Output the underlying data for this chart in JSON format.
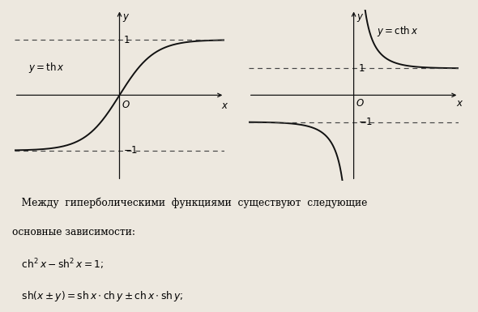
{
  "background_color": "#ede8df",
  "left_plot": {
    "xlim": [
      -3.0,
      3.0
    ],
    "ylim": [
      -1.55,
      1.55
    ],
    "asymptotes": [
      1.0,
      -1.0
    ]
  },
  "right_plot": {
    "xlim": [
      -3.0,
      3.0
    ],
    "ylim": [
      -3.2,
      3.2
    ],
    "asymptotes": [
      1.0,
      -1.0
    ],
    "coth_cutoff": 0.32
  },
  "curve_color": "#111111",
  "dashed_color": "#444444",
  "axis_color": "#111111",
  "figsize": [
    5.9,
    3.85
  ],
  "dpi": 100
}
